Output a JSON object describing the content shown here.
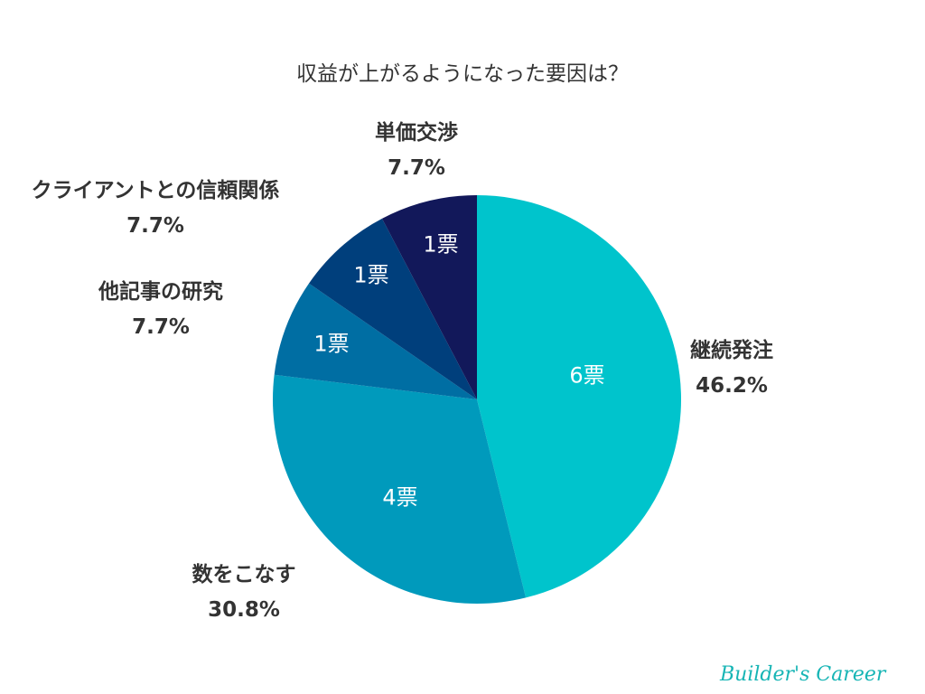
{
  "chart_data": {
    "type": "pie",
    "title": "収益が上がるようになった要因は？",
    "start": "top",
    "direction": "clockwise",
    "slices": [
      {
        "label": "継続発注",
        "value": 6,
        "value_label": "6票",
        "percent": "46.2%",
        "color": "#00c4cc"
      },
      {
        "label": "数をこなす",
        "value": 4,
        "value_label": "4票",
        "percent": "30.8%",
        "color": "#009abc"
      },
      {
        "label": "他記事の研究",
        "value": 1,
        "value_label": "1票",
        "percent": "7.7%",
        "color": "#006ea3"
      },
      {
        "label": "クライアントとの信頼関係",
        "value": 1,
        "value_label": "1票",
        "percent": "7.7%",
        "color": "#003f7c"
      },
      {
        "label": "単価交渉",
        "value": 1,
        "value_label": "1票",
        "percent": "7.7%",
        "color": "#12185a"
      }
    ]
  },
  "watermark": "Builder's Career"
}
